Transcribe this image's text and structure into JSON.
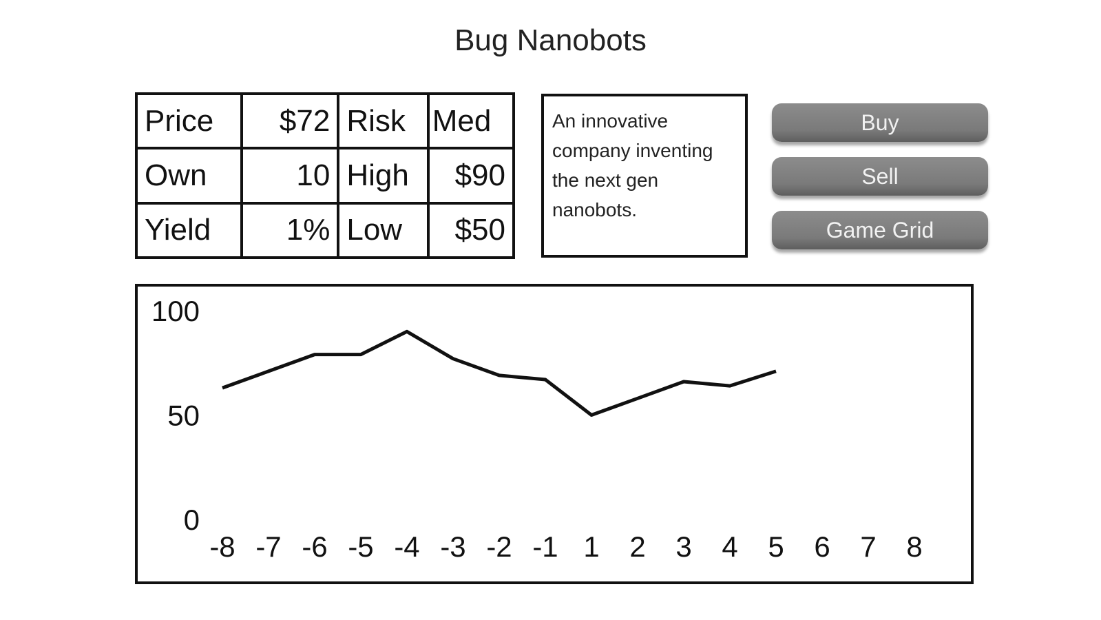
{
  "title": "Bug Nanobots",
  "stats": {
    "price_label": "Price",
    "price_value": "$72",
    "risk_label": "Risk",
    "risk_value": "Med",
    "own_label": "Own",
    "own_value": "10",
    "high_label": "High",
    "high_value": "$90",
    "yield_label": "Yield",
    "yield_value": "1%",
    "low_label": "Low",
    "low_value": "$50"
  },
  "description": "An innovative company inventing the next gen nanobots.",
  "buttons": {
    "buy": "Buy",
    "sell": "Sell",
    "game_grid": "Game Grid"
  },
  "colors": {
    "button": "#7a7a7a",
    "button_text": "#f2f2f2",
    "line": "#111111"
  },
  "chart_data": {
    "type": "line",
    "title": "",
    "xlabel": "",
    "ylabel": "",
    "categories": [
      "-8",
      "-7",
      "-6",
      "-5",
      "-4",
      "-3",
      "-2",
      "-1",
      "1",
      "2",
      "3",
      "4",
      "5",
      "6",
      "7",
      "8"
    ],
    "y_ticks": [
      100,
      50,
      0
    ],
    "ylim": [
      0,
      100
    ],
    "grid": false,
    "series": [
      {
        "values": [
          63,
          71,
          79,
          79,
          90,
          77,
          69,
          67,
          50,
          58,
          66,
          64,
          71,
          null,
          null,
          null
        ]
      }
    ]
  }
}
